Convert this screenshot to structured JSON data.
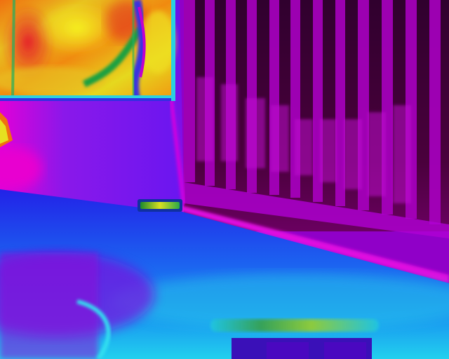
{
  "image": {
    "kind": "thermal-camera-frame",
    "palette": "iron-rainbow",
    "palette_colors": {
      "coldest": "#120018",
      "cold": "#2a0a8a",
      "cool": "#3a4cff",
      "mid": "#2fd6e8",
      "warm_low": "#1fae4a",
      "warm": "#e7e61e",
      "hot": "#f08a0f",
      "hottest": "#e8202a",
      "wall_magenta": "#c400d8",
      "wall_violet": "#7a10e0"
    },
    "regions": [
      "hot-window-panel",
      "wall-violet",
      "radiator-stripes",
      "skirting-board-hot-line",
      "floor-blue",
      "floor-cyan-foreground",
      "small-heat-strip",
      "foreground-object-edge"
    ]
  }
}
